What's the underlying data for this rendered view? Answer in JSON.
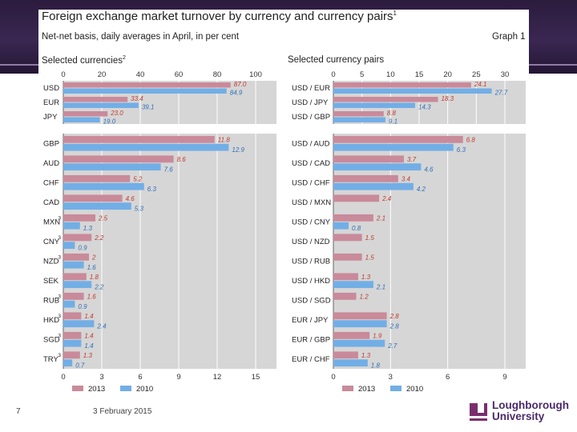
{
  "slide": {
    "number": "7",
    "date": "3 February 2015",
    "logo_line1": "Loughborough",
    "logo_line2": "University"
  },
  "header": {
    "title": "Foreign exchange market turnover by currency and currency pairs",
    "title_note": "1",
    "subtitle": "Net-net basis, daily averages in April, in per cent",
    "graph_label": "Graph 1"
  },
  "colors": {
    "bar_2013": "#c98a9a",
    "bar_2010": "#72aee6",
    "label_2013": "#c0392b",
    "label_2010": "#2e6fb8",
    "panel_bg": "#d6d6d6",
    "band": "#3a2752",
    "logo": "#4b2a6b"
  },
  "legend": {
    "s2013": "2013",
    "s2010": "2010"
  },
  "chart_data": [
    {
      "type": "bar",
      "orientation": "horizontal",
      "title": "Selected currencies",
      "title_note": "2",
      "series": [
        "2013",
        "2010"
      ],
      "groups": [
        {
          "name": "top",
          "axis_min": 0,
          "axis_max": 100,
          "ticks": [
            "0",
            "20",
            "40",
            "60",
            "80",
            "100"
          ],
          "categories": [
            {
              "label": "USD",
              "note": "",
              "v2013": 87.0,
              "v2010": 84.9,
              "l2013": "87.0",
              "l2010": "84.9"
            },
            {
              "label": "EUR",
              "note": "",
              "v2013": 33.4,
              "v2010": 39.1,
              "l2013": "33.4",
              "l2010": "39.1"
            },
            {
              "label": "JPY",
              "note": "",
              "v2013": 23.0,
              "v2010": 19.0,
              "l2013": "23.0",
              "l2010": "19.0"
            }
          ]
        },
        {
          "name": "bottom",
          "axis_min": 0,
          "axis_max": 15,
          "ticks": [
            "0",
            "3",
            "6",
            "9",
            "12",
            "15"
          ],
          "categories": [
            {
              "label": "GBP",
              "note": "",
              "v2013": 11.8,
              "v2010": 12.9,
              "l2013": "11.8",
              "l2010": "12.9"
            },
            {
              "label": "AUD",
              "note": "",
              "v2013": 8.6,
              "v2010": 7.6,
              "l2013": "8.6",
              "l2010": "7.6"
            },
            {
              "label": "CHF",
              "note": "",
              "v2013": 5.2,
              "v2010": 6.3,
              "l2013": "5.2",
              "l2010": "6.3"
            },
            {
              "label": "CAD",
              "note": "",
              "v2013": 4.6,
              "v2010": 5.3,
              "l2013": "4.6",
              "l2010": "5.3"
            },
            {
              "label": "MXN",
              "note": "3",
              "v2013": 2.5,
              "v2010": 1.3,
              "l2013": "2.5",
              "l2010": "1.3"
            },
            {
              "label": "CNY",
              "note": "3",
              "v2013": 2.2,
              "v2010": 0.9,
              "l2013": "2.2",
              "l2010": "0.9"
            },
            {
              "label": "NZD",
              "note": "3",
              "v2013": 2.0,
              "v2010": 1.6,
              "l2013": "2",
              "l2010": "1.6"
            },
            {
              "label": "SEK",
              "note": "",
              "v2013": 1.8,
              "v2010": 2.2,
              "l2013": "1.8",
              "l2010": "2.2"
            },
            {
              "label": "RUB",
              "note": "3",
              "v2013": 1.6,
              "v2010": 0.9,
              "l2013": "1.6",
              "l2010": "0.9"
            },
            {
              "label": "HKD",
              "note": "3",
              "v2013": 1.4,
              "v2010": 2.4,
              "l2013": "1.4",
              "l2010": "2.4"
            },
            {
              "label": "SGD",
              "note": "3",
              "v2013": 1.4,
              "v2010": 1.4,
              "l2013": "1.4",
              "l2010": "1.4"
            },
            {
              "label": "TRY",
              "note": "3",
              "v2013": 1.3,
              "v2010": 0.7,
              "l2013": "1.3",
              "l2010": "0.7"
            }
          ]
        }
      ]
    },
    {
      "type": "bar",
      "orientation": "horizontal",
      "title": "Selected currency pairs",
      "title_note": "",
      "series": [
        "2013",
        "2010"
      ],
      "groups": [
        {
          "name": "top",
          "axis_min": 0,
          "axis_max": 30,
          "ticks": [
            "0",
            "5",
            "10",
            "15",
            "20",
            "25",
            "30"
          ],
          "categories": [
            {
              "label": "USD / EUR",
              "note": "",
              "v2013": 24.1,
              "v2010": 27.7,
              "l2013": "24.1",
              "l2010": "27.7"
            },
            {
              "label": "USD / JPY",
              "note": "",
              "v2013": 18.3,
              "v2010": 14.3,
              "l2013": "18.3",
              "l2010": "14.3"
            },
            {
              "label": "USD / GBP",
              "note": "",
              "v2013": 8.8,
              "v2010": 9.1,
              "l2013": "8.8",
              "l2010": "9.1"
            }
          ]
        },
        {
          "name": "bottom",
          "axis_min": 0,
          "axis_max": 9,
          "ticks": [
            "0",
            "3",
            "6",
            "9"
          ],
          "categories": [
            {
              "label": "USD / AUD",
              "note": "",
              "v2013": 6.8,
              "v2010": 6.3,
              "l2013": "6.8",
              "l2010": "6.3"
            },
            {
              "label": "USD / CAD",
              "note": "",
              "v2013": 3.7,
              "v2010": 4.6,
              "l2013": "3.7",
              "l2010": "4.6"
            },
            {
              "label": "USD / CHF",
              "note": "",
              "v2013": 3.4,
              "v2010": 4.2,
              "l2013": "3.4",
              "l2010": "4.2"
            },
            {
              "label": "USD / MXN",
              "note": "",
              "v2013": 2.4,
              "v2010": null,
              "l2013": "2.4",
              "l2010": ""
            },
            {
              "label": "USD / CNY",
              "note": "",
              "v2013": 2.1,
              "v2010": 0.8,
              "l2013": "2.1",
              "l2010": "0.8"
            },
            {
              "label": "USD / NZD",
              "note": "",
              "v2013": 1.5,
              "v2010": null,
              "l2013": "1.5",
              "l2010": ""
            },
            {
              "label": "USD / RUB",
              "note": "",
              "v2013": 1.5,
              "v2010": null,
              "l2013": "1.5",
              "l2010": ""
            },
            {
              "label": "USD / HKD",
              "note": "",
              "v2013": 1.3,
              "v2010": 2.1,
              "l2013": "1.3",
              "l2010": "2.1"
            },
            {
              "label": "USD / SGD",
              "note": "",
              "v2013": 1.2,
              "v2010": null,
              "l2013": "1.2",
              "l2010": ""
            },
            {
              "label": "EUR / JPY",
              "note": "",
              "v2013": 2.8,
              "v2010": 2.8,
              "l2013": "2.8",
              "l2010": "2.8"
            },
            {
              "label": "EUR / GBP",
              "note": "",
              "v2013": 1.9,
              "v2010": 2.7,
              "l2013": "1.9",
              "l2010": "2.7"
            },
            {
              "label": "EUR / CHF",
              "note": "",
              "v2013": 1.3,
              "v2010": 1.8,
              "l2013": "1.3",
              "l2010": "1.8"
            }
          ]
        }
      ]
    }
  ]
}
